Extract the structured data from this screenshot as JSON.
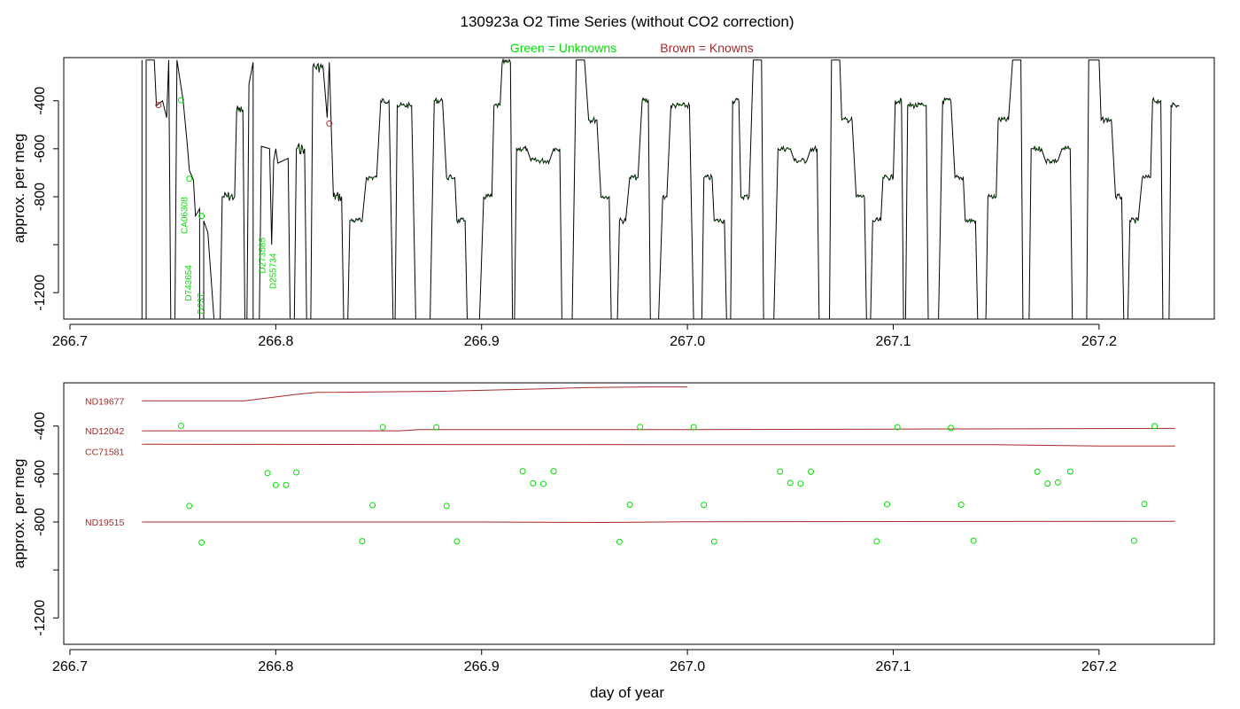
{
  "title": "130923a   O2 Time Series (without CO2 correction)",
  "legend": {
    "unknowns": "Green = Unknowns",
    "knowns": "Brown = Knowns"
  },
  "colors": {
    "unknown": "#00e000",
    "known": "#a52a2a",
    "trace": "#000000",
    "trace_green": "#006400"
  },
  "chart_data": [
    {
      "type": "line",
      "panel": "top",
      "xlabel": "",
      "ylabel": "approx. per meg",
      "xlim": [
        266.697,
        267.256
      ],
      "ylim": [
        -1310,
        -220
      ],
      "x_ticks": [
        "266.7",
        "266.8",
        "266.9",
        "267.0",
        "267.1",
        "267.2"
      ],
      "y_ticks": [
        -400,
        -600,
        -800,
        -1000,
        -1200
      ],
      "y_tick_labels": [
        "-400",
        "-600",
        "-800",
        "",
        "-1200"
      ],
      "trace_points": [
        [
          266.735,
          -230
        ],
        [
          266.735,
          -1310
        ],
        [
          266.737,
          -1310
        ],
        [
          266.737,
          -230
        ],
        [
          266.741,
          -230
        ],
        [
          266.742,
          -420
        ],
        [
          266.745,
          -400
        ],
        [
          266.747,
          -470
        ],
        [
          266.748,
          -230
        ],
        [
          266.749,
          -1310
        ],
        [
          266.751,
          -1310
        ],
        [
          266.752,
          -230
        ],
        [
          266.755,
          -400
        ],
        [
          266.757,
          -580
        ],
        [
          266.758,
          -690
        ],
        [
          266.76,
          -730
        ],
        [
          266.761,
          -880
        ],
        [
          266.763,
          -850
        ],
        [
          266.763,
          -1310
        ],
        [
          266.765,
          -1310
        ],
        [
          266.765,
          -900
        ],
        [
          266.767,
          -950
        ],
        [
          266.77,
          -1310
        ],
        [
          266.773,
          -1310
        ],
        [
          266.774,
          -800
        ],
        [
          266.78,
          -800
        ],
        [
          266.781,
          -440
        ],
        [
          266.784,
          -440
        ],
        [
          266.785,
          -1310
        ],
        [
          266.786,
          -1310
        ],
        [
          266.787,
          -330
        ],
        [
          266.789,
          -240
        ],
        [
          266.789,
          -1310
        ],
        [
          266.792,
          -1310
        ],
        [
          266.793,
          -590
        ],
        [
          266.797,
          -600
        ],
        [
          266.798,
          -1000
        ],
        [
          266.799,
          -650
        ],
        [
          266.8,
          -600
        ],
        [
          266.801,
          -660
        ],
        [
          266.806,
          -640
        ],
        [
          266.807,
          -1310
        ],
        [
          266.809,
          -1310
        ],
        [
          266.81,
          -600
        ],
        [
          266.814,
          -600
        ],
        [
          266.815,
          -1310
        ],
        [
          266.817,
          -1310
        ],
        [
          266.818,
          -260
        ],
        [
          266.823,
          -260
        ],
        [
          266.825,
          -470
        ],
        [
          266.826,
          -240
        ],
        [
          266.828,
          -800
        ],
        [
          266.832,
          -800
        ],
        [
          266.833,
          -1310
        ],
        [
          266.835,
          -1310
        ],
        [
          266.836,
          -900
        ],
        [
          266.842,
          -900
        ],
        [
          266.844,
          -720
        ],
        [
          266.849,
          -720
        ],
        [
          266.851,
          -400
        ],
        [
          266.855,
          -400
        ],
        [
          266.857,
          -1310
        ],
        [
          266.858,
          -1310
        ],
        [
          266.859,
          -420
        ],
        [
          266.866,
          -420
        ],
        [
          266.868,
          -1310
        ],
        [
          266.875,
          -1310
        ],
        [
          266.877,
          -400
        ],
        [
          266.881,
          -400
        ],
        [
          266.883,
          -720
        ],
        [
          266.887,
          -720
        ],
        [
          266.888,
          -900
        ],
        [
          266.892,
          -900
        ],
        [
          266.893,
          -1310
        ],
        [
          266.899,
          -1310
        ],
        [
          266.901,
          -800
        ],
        [
          266.905,
          -800
        ],
        [
          266.906,
          -420
        ],
        [
          266.909,
          -420
        ],
        [
          266.91,
          -240
        ],
        [
          266.914,
          -240
        ],
        [
          266.915,
          -1310
        ],
        [
          266.916,
          -1310
        ],
        [
          266.917,
          -600
        ],
        [
          266.922,
          -600
        ],
        [
          266.924,
          -650
        ],
        [
          266.933,
          -650
        ],
        [
          266.935,
          -600
        ],
        [
          266.938,
          -600
        ],
        [
          266.939,
          -1310
        ],
        [
          266.944,
          -1310
        ],
        [
          266.946,
          -230
        ],
        [
          266.95,
          -230
        ],
        [
          266.952,
          -480
        ],
        [
          266.956,
          -480
        ],
        [
          266.958,
          -800
        ],
        [
          266.962,
          -800
        ],
        [
          266.963,
          -1310
        ],
        [
          266.966,
          -1310
        ],
        [
          266.967,
          -900
        ],
        [
          266.97,
          -900
        ],
        [
          266.972,
          -720
        ],
        [
          266.976,
          -720
        ],
        [
          266.978,
          -400
        ],
        [
          266.981,
          -400
        ],
        [
          266.982,
          -1310
        ],
        [
          266.986,
          -1310
        ],
        [
          266.988,
          -800
        ],
        [
          266.99,
          -800
        ],
        [
          266.992,
          -420
        ],
        [
          267.001,
          -420
        ],
        [
          267.003,
          -1310
        ],
        [
          267.007,
          -1310
        ],
        [
          267.008,
          -720
        ],
        [
          267.012,
          -720
        ],
        [
          267.013,
          -900
        ],
        [
          267.018,
          -900
        ],
        [
          267.019,
          -1310
        ],
        [
          267.021,
          -1310
        ],
        [
          267.022,
          -400
        ],
        [
          267.025,
          -400
        ],
        [
          267.026,
          -800
        ],
        [
          267.03,
          -800
        ],
        [
          267.032,
          -230
        ],
        [
          267.036,
          -230
        ],
        [
          267.037,
          -1310
        ],
        [
          267.042,
          -1310
        ],
        [
          267.044,
          -600
        ],
        [
          267.05,
          -600
        ],
        [
          267.052,
          -650
        ],
        [
          267.058,
          -650
        ],
        [
          267.06,
          -600
        ],
        [
          267.063,
          -600
        ],
        [
          267.064,
          -1310
        ],
        [
          267.069,
          -1310
        ],
        [
          267.07,
          -230
        ],
        [
          267.074,
          -230
        ],
        [
          267.075,
          -480
        ],
        [
          267.08,
          -480
        ],
        [
          267.082,
          -800
        ],
        [
          267.086,
          -800
        ],
        [
          267.087,
          -1310
        ],
        [
          267.089,
          -1310
        ],
        [
          267.09,
          -900
        ],
        [
          267.094,
          -900
        ],
        [
          267.095,
          -720
        ],
        [
          267.1,
          -720
        ],
        [
          267.101,
          -400
        ],
        [
          267.104,
          -400
        ],
        [
          267.105,
          -1310
        ],
        [
          267.106,
          -1310
        ],
        [
          267.107,
          -420
        ],
        [
          267.116,
          -420
        ],
        [
          267.117,
          -1310
        ],
        [
          267.122,
          -1310
        ],
        [
          267.124,
          -400
        ],
        [
          267.128,
          -400
        ],
        [
          267.13,
          -720
        ],
        [
          267.134,
          -720
        ],
        [
          267.135,
          -900
        ],
        [
          267.14,
          -900
        ],
        [
          267.141,
          -1310
        ],
        [
          267.145,
          -1310
        ],
        [
          267.146,
          -800
        ],
        [
          267.15,
          -800
        ],
        [
          267.151,
          -480
        ],
        [
          267.156,
          -480
        ],
        [
          267.158,
          -230
        ],
        [
          267.162,
          -230
        ],
        [
          267.163,
          -1310
        ],
        [
          267.166,
          -1310
        ],
        [
          267.167,
          -600
        ],
        [
          267.172,
          -600
        ],
        [
          267.174,
          -650
        ],
        [
          267.18,
          -650
        ],
        [
          267.182,
          -600
        ],
        [
          267.186,
          -600
        ],
        [
          267.187,
          -1310
        ],
        [
          267.194,
          -1310
        ],
        [
          267.195,
          -230
        ],
        [
          267.2,
          -230
        ],
        [
          267.201,
          -480
        ],
        [
          267.206,
          -480
        ],
        [
          267.208,
          -800
        ],
        [
          267.211,
          -800
        ],
        [
          267.212,
          -1310
        ],
        [
          267.214,
          -1310
        ],
        [
          267.215,
          -900
        ],
        [
          267.219,
          -900
        ],
        [
          267.221,
          -720
        ],
        [
          267.225,
          -720
        ],
        [
          267.226,
          -400
        ],
        [
          267.23,
          -400
        ],
        [
          267.231,
          -1310
        ],
        [
          267.234,
          -1310
        ],
        [
          267.235,
          -420
        ],
        [
          267.238,
          -420
        ],
        [
          267.239,
          -420
        ]
      ],
      "unknown_points": [
        [
          266.754,
          -398
        ],
        [
          266.758,
          -725
        ],
        [
          266.764,
          -880
        ]
      ],
      "known_points": [
        [
          266.743,
          -418
        ],
        [
          266.826,
          -495
        ]
      ],
      "sample_labels": [
        {
          "text": "CA06308",
          "x": 266.757,
          "y": -955
        },
        {
          "text": "D743654",
          "x": 266.759,
          "y": -1235
        },
        {
          "text": "D237",
          "x": 266.765,
          "y": -1290
        },
        {
          "text": "D273585",
          "x": 266.795,
          "y": -1120
        },
        {
          "text": "D255734",
          "x": 266.8,
          "y": -1185
        }
      ]
    },
    {
      "type": "line",
      "panel": "bottom",
      "xlabel": "day of year",
      "ylabel": "approx. per meg",
      "xlim": [
        266.697,
        267.256
      ],
      "ylim": [
        -1310,
        -220
      ],
      "x_ticks": [
        "266.7",
        "266.8",
        "266.9",
        "267.0",
        "267.1",
        "267.2"
      ],
      "y_ticks": [
        -400,
        -600,
        -800,
        -1000,
        -1200
      ],
      "y_tick_labels": [
        "-400",
        "-600",
        "-800",
        "",
        "-1200"
      ],
      "known_series": [
        {
          "name": "ND19677",
          "points": [
            [
              266.735,
              -295
            ],
            [
              266.785,
              -295
            ],
            [
              266.81,
              -268
            ],
            [
              266.82,
              -260
            ],
            [
              266.88,
              -255
            ],
            [
              266.93,
              -245
            ],
            [
              266.95,
              -240
            ],
            [
              266.98,
              -237
            ],
            [
              267.0,
              -237
            ]
          ]
        },
        {
          "name": "ND12042",
          "points": [
            [
              266.735,
              -420
            ],
            [
              266.86,
              -420
            ],
            [
              266.87,
              -415
            ],
            [
              267.0,
              -415
            ],
            [
              267.1,
              -413
            ],
            [
              267.237,
              -410
            ]
          ]
        },
        {
          "name": "CC71581",
          "points": [
            [
              266.735,
              -476
            ],
            [
              267.0,
              -478
            ],
            [
              267.15,
              -478
            ],
            [
              267.17,
              -480
            ],
            [
              267.2,
              -483
            ],
            [
              267.237,
              -483
            ]
          ]
        },
        {
          "name": "ND19515",
          "points": [
            [
              266.735,
              -800
            ],
            [
              266.9,
              -800
            ],
            [
              266.96,
              -802
            ],
            [
              267.0,
              -799
            ],
            [
              267.237,
              -797
            ]
          ]
        }
      ],
      "unknowns": [
        [
          266.754,
          -399
        ],
        [
          266.758,
          -733
        ],
        [
          266.764,
          -886
        ],
        [
          266.796,
          -596
        ],
        [
          266.8,
          -646
        ],
        [
          266.805,
          -646
        ],
        [
          266.81,
          -593
        ],
        [
          266.842,
          -880
        ],
        [
          266.847,
          -730
        ],
        [
          266.852,
          -405
        ],
        [
          266.878,
          -405
        ],
        [
          266.883,
          -733
        ],
        [
          266.888,
          -881
        ],
        [
          266.92,
          -588
        ],
        [
          266.925,
          -639
        ],
        [
          266.93,
          -641
        ],
        [
          266.935,
          -588
        ],
        [
          266.967,
          -883
        ],
        [
          266.972,
          -728
        ],
        [
          266.977,
          -404
        ],
        [
          267.003,
          -405
        ],
        [
          267.008,
          -729
        ],
        [
          267.013,
          -882
        ],
        [
          267.045,
          -590
        ],
        [
          267.05,
          -637
        ],
        [
          267.055,
          -640
        ],
        [
          267.06,
          -591
        ],
        [
          267.092,
          -881
        ],
        [
          267.097,
          -726
        ],
        [
          267.102,
          -405
        ],
        [
          267.128,
          -408
        ],
        [
          267.133,
          -728
        ],
        [
          267.139,
          -878
        ],
        [
          267.17,
          -591
        ],
        [
          267.175,
          -640
        ],
        [
          267.18,
          -635
        ],
        [
          267.186,
          -590
        ],
        [
          267.217,
          -878
        ],
        [
          267.222,
          -725
        ],
        [
          267.227,
          -400
        ]
      ]
    }
  ]
}
